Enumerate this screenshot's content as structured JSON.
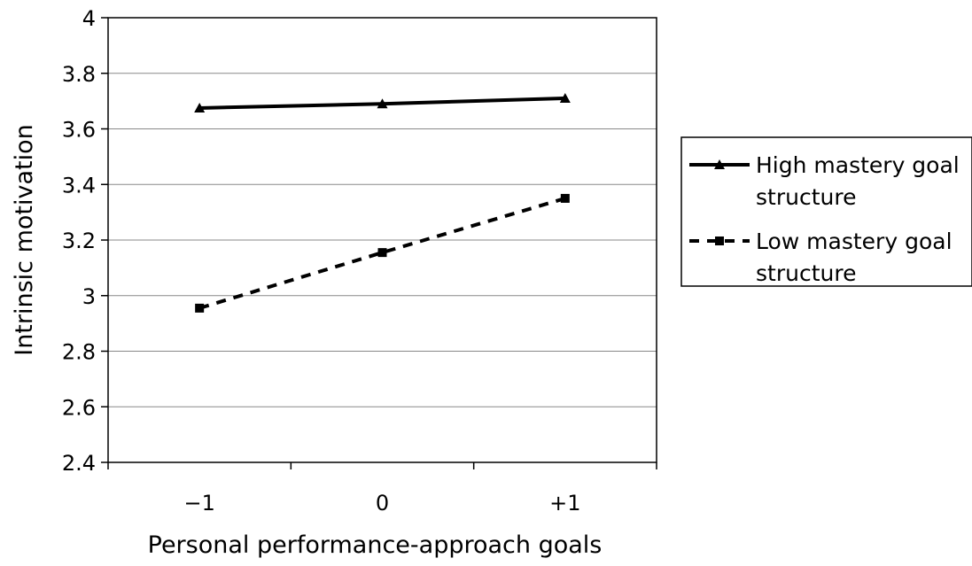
{
  "chart_data": {
    "type": "line",
    "title": "",
    "xlabel": "Personal performance-approach goals",
    "ylabel": "Intrinsic motivation",
    "categories": [
      "−1",
      "0",
      "+1"
    ],
    "ylim": [
      2.4,
      4
    ],
    "yticks": [
      "2.4",
      "2.6",
      "2.8",
      "3",
      "3.2",
      "3.4",
      "3.6",
      "3.8",
      "4"
    ],
    "grid": "horizontal",
    "legend_position": "right",
    "series": [
      {
        "name_lines": [
          "High mastery goal",
          "structure"
        ],
        "values": [
          3.675,
          3.69,
          3.71
        ],
        "marker": "triangle",
        "line_style": "solid",
        "color": "#000000"
      },
      {
        "name_lines": [
          "Low mastery goal",
          "structure"
        ],
        "values": [
          2.955,
          3.155,
          3.35
        ],
        "marker": "square",
        "line_style": "dashed",
        "color": "#000000"
      }
    ]
  }
}
